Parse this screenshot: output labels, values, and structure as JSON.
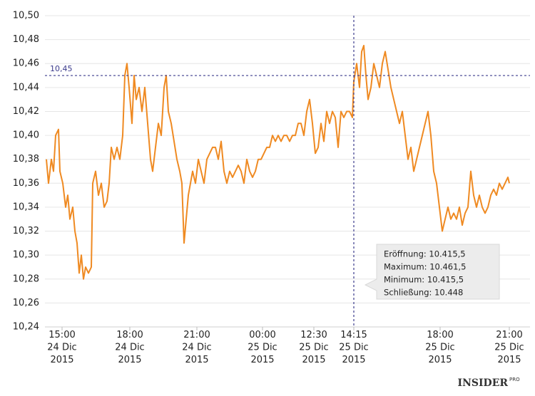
{
  "chart_data": {
    "type": "line",
    "x": [
      2,
      5,
      9,
      12,
      15,
      19,
      21,
      25,
      29,
      32,
      35,
      39,
      42,
      45,
      48,
      51,
      54,
      57,
      61,
      65,
      67,
      71,
      75,
      79,
      83,
      87,
      90,
      93,
      97,
      101,
      105,
      109,
      112,
      115,
      118,
      122,
      125,
      128,
      132,
      136,
      140,
      144,
      148,
      151,
      155,
      159,
      163,
      167,
      170,
      173,
      177,
      181,
      185,
      189,
      192,
      195,
      198,
      201,
      204,
      207,
      211,
      215,
      219,
      223,
      227,
      231,
      235,
      239,
      243,
      247,
      251,
      255,
      259,
      263,
      267,
      271,
      275,
      279,
      283,
      287,
      291,
      295,
      299,
      303,
      307,
      311,
      315,
      319,
      323,
      327,
      331,
      335,
      339,
      343,
      347,
      351,
      355,
      359,
      363,
      367,
      371,
      375,
      379,
      383,
      387,
      391,
      395,
      399,
      403,
      407,
      411,
      415,
      419,
      423,
      427,
      431,
      433,
      437,
      441,
      444,
      447,
      450,
      453,
      457,
      461,
      465,
      469,
      473,
      477,
      481,
      485,
      489,
      493,
      497,
      501,
      505,
      509,
      513,
      517,
      521,
      525,
      529,
      533,
      537,
      541,
      545,
      549,
      553,
      557,
      561,
      565,
      569,
      573,
      577,
      581,
      585,
      589,
      593,
      597,
      601,
      605,
      609,
      613,
      617,
      621,
      625,
      629,
      633,
      637,
      641,
      645,
      649,
      651
    ],
    "series": [
      {
        "color": "#ef8a22",
        "values": [
          10.38,
          10.36,
          10.38,
          10.37,
          10.4,
          10.405,
          10.37,
          10.36,
          10.34,
          10.35,
          10.33,
          10.34,
          10.32,
          10.31,
          10.285,
          10.3,
          10.28,
          10.29,
          10.285,
          10.29,
          10.36,
          10.37,
          10.35,
          10.36,
          10.34,
          10.345,
          10.36,
          10.39,
          10.38,
          10.39,
          10.38,
          10.4,
          10.45,
          10.46,
          10.44,
          10.41,
          10.45,
          10.43,
          10.44,
          10.42,
          10.44,
          10.41,
          10.38,
          10.37,
          10.39,
          10.41,
          10.4,
          10.44,
          10.45,
          10.42,
          10.41,
          10.395,
          10.38,
          10.37,
          10.36,
          10.31,
          10.33,
          10.35,
          10.36,
          10.37,
          10.36,
          10.38,
          10.37,
          10.36,
          10.38,
          10.385,
          10.39,
          10.39,
          10.38,
          10.395,
          10.37,
          10.36,
          10.37,
          10.365,
          10.37,
          10.375,
          10.37,
          10.36,
          10.38,
          10.37,
          10.365,
          10.37,
          10.38,
          10.38,
          10.385,
          10.39,
          10.39,
          10.4,
          10.395,
          10.4,
          10.395,
          10.4,
          10.4,
          10.395,
          10.4,
          10.4,
          10.41,
          10.41,
          10.4,
          10.42,
          10.43,
          10.41,
          10.385,
          10.39,
          10.41,
          10.395,
          10.42,
          10.41,
          10.42,
          10.415,
          10.39,
          10.42,
          10.415,
          10.42,
          10.42,
          10.415,
          10.445,
          10.46,
          10.44,
          10.47,
          10.475,
          10.45,
          10.43,
          10.44,
          10.46,
          10.45,
          10.44,
          10.46,
          10.47,
          10.455,
          10.44,
          10.43,
          10.42,
          10.41,
          10.42,
          10.4,
          10.38,
          10.39,
          10.37,
          10.38,
          10.39,
          10.4,
          10.41,
          10.42,
          10.4,
          10.37,
          10.36,
          10.34,
          10.32,
          10.33,
          10.34,
          10.33,
          10.335,
          10.33,
          10.34,
          10.325,
          10.335,
          10.34,
          10.37,
          10.35,
          10.34,
          10.35,
          10.34,
          10.335,
          10.34,
          10.35,
          10.355,
          10.35,
          10.36,
          10.355,
          10.36,
          10.365,
          10.36
        ]
      }
    ],
    "xlim": [
      0,
      680
    ],
    "xticks": [
      {
        "value": 24,
        "label": "15:00\n24 Dic\n2015"
      },
      {
        "value": 119,
        "label": "18:00\n24 Dic\n2015"
      },
      {
        "value": 213,
        "label": "21:00\n24 Dic\n2015"
      },
      {
        "value": 305,
        "label": "00:00\n25 Dic\n2015"
      },
      {
        "value": 377,
        "label": "12:30\n25 Dic\n2015"
      },
      {
        "value": 433,
        "label": "14:15\n25 Dic\n2015"
      },
      {
        "value": 554,
        "label": "18:00\n25 Dic\n2015"
      },
      {
        "value": 651,
        "label": "21:00\n25 Dic\n2015"
      }
    ],
    "ylim": [
      10.24,
      10.5
    ],
    "yticks": [
      {
        "value": 10.24,
        "label": "10,24"
      },
      {
        "value": 10.26,
        "label": "10,26"
      },
      {
        "value": 10.28,
        "label": "10,28"
      },
      {
        "value": 10.3,
        "label": "10,30"
      },
      {
        "value": 10.32,
        "label": "10,32"
      },
      {
        "value": 10.34,
        "label": "10,34"
      },
      {
        "value": 10.36,
        "label": "10,36"
      },
      {
        "value": 10.38,
        "label": "10,38"
      },
      {
        "value": 10.4,
        "label": "10,40"
      },
      {
        "value": 10.42,
        "label": "10,42"
      },
      {
        "value": 10.44,
        "label": "10,44"
      },
      {
        "value": 10.46,
        "label": "10,46"
      },
      {
        "value": 10.48,
        "label": "10,48"
      },
      {
        "value": 10.5,
        "label": "10,50"
      }
    ],
    "grid": true,
    "crosshair": {
      "x": 433,
      "y": 10.45,
      "label": "10,45",
      "color": "#3b3b8c"
    },
    "tooltip": [
      "Eröffnung: 10.415,5",
      "Maximum: 10.461,5",
      "Minimum:  10.415,5",
      "Schließung: 10.448"
    ],
    "logo": {
      "name": "INSIDER",
      "suffix": "PRO"
    }
  }
}
